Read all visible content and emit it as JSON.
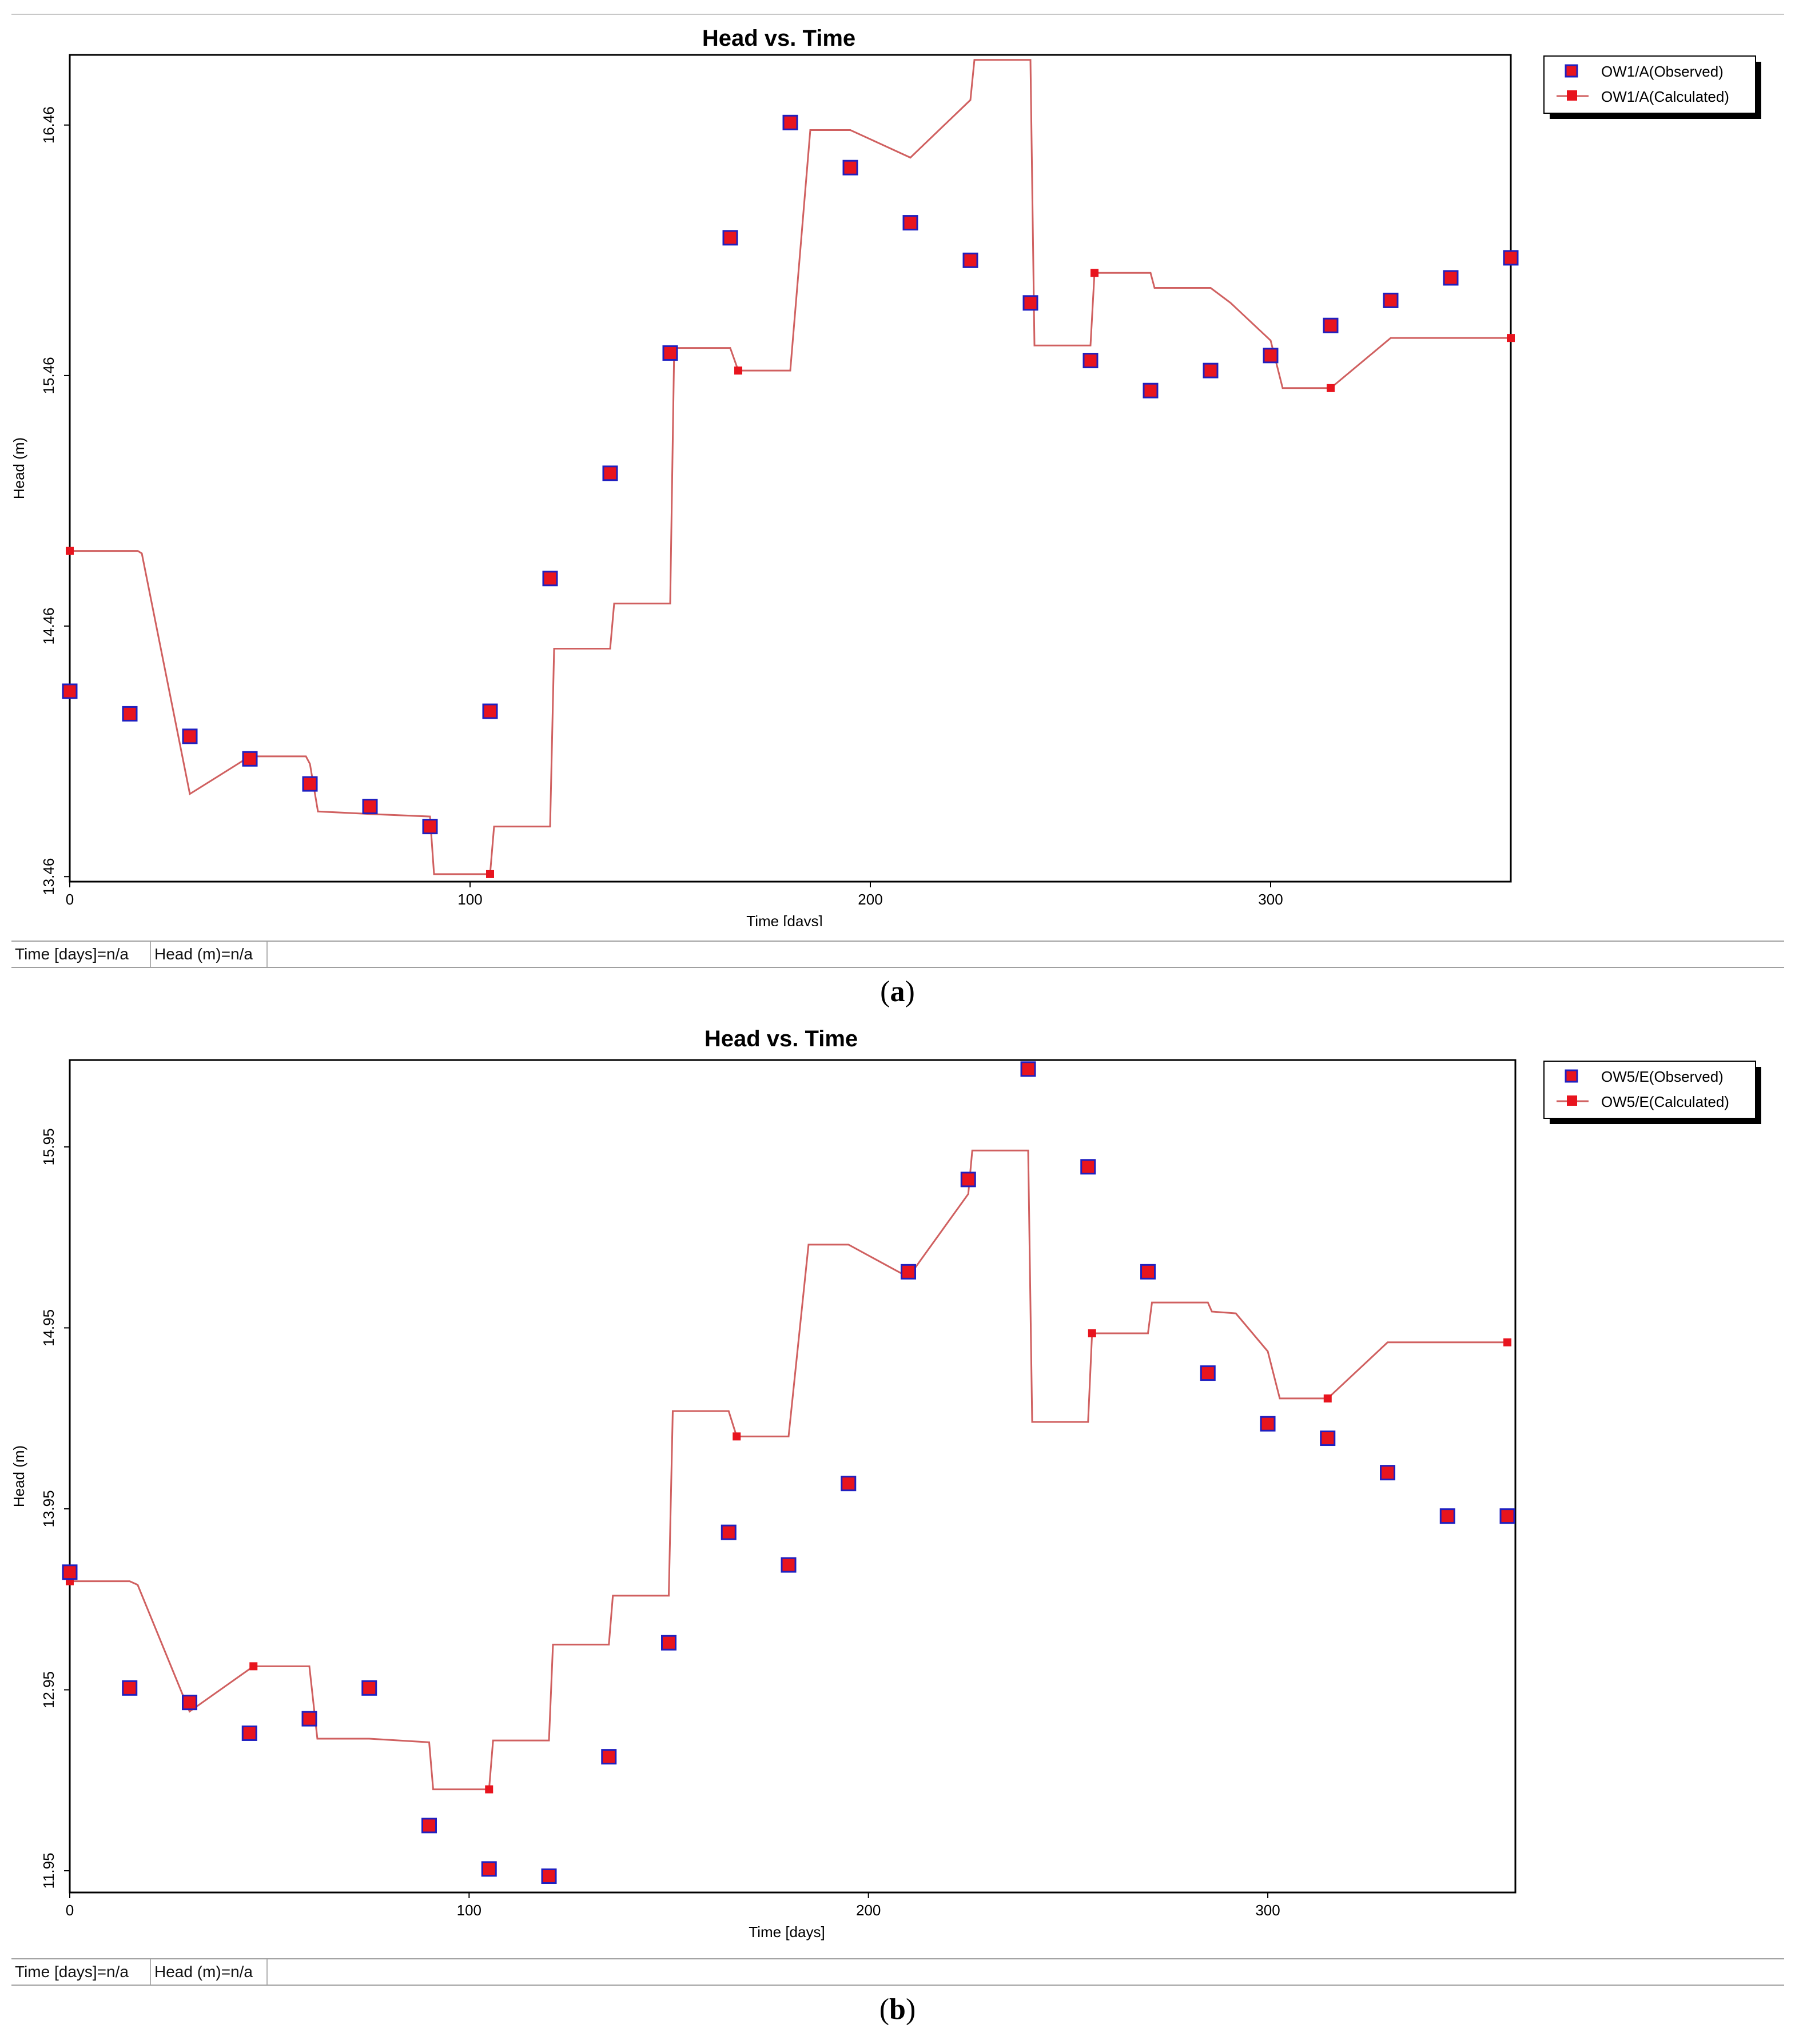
{
  "panels": [
    {
      "caption": "a",
      "status": {
        "time": "Time  [days]=n/a",
        "head": "Head (m)=n/a",
        "extra": ""
      },
      "chart_data": {
        "type": "line",
        "title": "Head vs. Time",
        "xlabel": "Time  [days]",
        "ylabel": "Head (m)",
        "xlim": [
          0,
          360
        ],
        "ylim": [
          13.44,
          16.74
        ],
        "xticks": [
          0,
          100,
          200,
          300
        ],
        "yticks": [
          13.46,
          14.46,
          15.46,
          16.46
        ],
        "ytick_labels": [
          "13.46",
          "14.46",
          "15.46",
          "16.46"
        ],
        "legend_position": "top-right",
        "series": [
          {
            "name": "OW1/A(Observed)",
            "kind": "markers",
            "marker_fill": "#e8141e",
            "marker_edge": "#2020c0",
            "x": [
              0,
              15,
              30,
              45,
              60,
              75,
              90,
              105,
              120,
              135,
              150,
              165,
              180,
              195,
              210,
              225,
              240,
              255,
              270,
              285,
              300,
              315,
              330,
              345,
              360
            ],
            "y": [
              14.2,
              14.11,
              14.02,
              13.93,
              13.83,
              13.74,
              13.66,
              14.12,
              14.65,
              15.07,
              15.55,
              16.01,
              16.47,
              16.29,
              16.07,
              15.92,
              15.75,
              15.52,
              15.4,
              15.48,
              15.54,
              15.66,
              15.76,
              15.85,
              15.93
            ]
          },
          {
            "name": "OW1/A(Calculated)",
            "kind": "line",
            "line_color": "#d06060",
            "marker_fill": "#e8141e",
            "x": [
              0,
              17,
              18,
              30,
              45,
              59,
              60,
              62,
              75,
              90,
              91,
              105,
              106,
              120,
              121,
              135,
              136,
              150,
              151,
              165,
              167,
              180,
              185,
              195,
              210,
              225,
              226,
              240,
              241,
              255,
              256,
              270,
              271,
              285,
              290,
              300,
              303,
              315,
              330,
              345,
              360
            ],
            "y": [
              14.76,
              14.76,
              14.75,
              13.79,
              13.94,
              13.94,
              13.91,
              13.72,
              13.71,
              13.7,
              13.47,
              13.47,
              13.66,
              13.66,
              14.37,
              14.37,
              14.55,
              14.55,
              15.57,
              15.57,
              15.48,
              15.48,
              16.44,
              16.44,
              16.33,
              16.56,
              16.72,
              16.72,
              15.58,
              15.58,
              15.87,
              15.87,
              15.81,
              15.81,
              15.75,
              15.6,
              15.41,
              15.41,
              15.61,
              15.61,
              15.61
            ]
          }
        ]
      }
    },
    {
      "caption": "b",
      "status": {
        "time": "Time  [days]=n/a",
        "head": "Head (m)=n/a",
        "extra": ""
      },
      "chart_data": {
        "type": "line",
        "title": "Head vs. Time",
        "xlabel": "Time  [days]",
        "ylabel": "Head (m)",
        "xlim": [
          0,
          362
        ],
        "ylim": [
          11.83,
          16.43
        ],
        "xticks": [
          0,
          100,
          200,
          300
        ],
        "yticks": [
          11.95,
          12.95,
          13.95,
          14.95,
          15.95
        ],
        "ytick_labels": [
          "11.95",
          "12.95",
          "13.95",
          "14.95",
          "15.95"
        ],
        "legend_position": "top-right",
        "series": [
          {
            "name": "OW5/E(Observed)",
            "kind": "markers",
            "marker_fill": "#e8141e",
            "marker_edge": "#2020c0",
            "x": [
              0,
              15,
              30,
              45,
              60,
              75,
              90,
              105,
              120,
              135,
              150,
              165,
              180,
              195,
              210,
              225,
              240,
              255,
              270,
              285,
              300,
              315,
              330,
              345,
              360
            ],
            "y": [
              13.6,
              12.96,
              12.88,
              12.71,
              12.79,
              12.96,
              12.2,
              11.96,
              11.92,
              12.58,
              13.21,
              13.82,
              13.64,
              14.09,
              15.26,
              15.77,
              16.38,
              15.84,
              15.26,
              14.7,
              14.42,
              14.34,
              14.15,
              13.91,
              13.91
            ]
          },
          {
            "name": "OW5/E(Calculated)",
            "kind": "line",
            "line_color": "#d06060",
            "marker_fill": "#e8141e",
            "x": [
              0,
              15,
              17,
              30,
              46,
              60,
              62,
              75,
              90,
              91,
              105,
              106,
              120,
              121,
              135,
              136,
              150,
              151,
              165,
              167,
              180,
              185,
              195,
              210,
              225,
              226,
              240,
              241,
              255,
              256,
              270,
              271,
              285,
              286,
              292,
              300,
              303,
              315,
              330,
              345,
              360
            ],
            "y": [
              13.55,
              13.55,
              13.53,
              12.83,
              13.08,
              13.08,
              12.68,
              12.68,
              12.66,
              12.4,
              12.4,
              12.67,
              12.67,
              13.2,
              13.2,
              13.47,
              13.47,
              14.49,
              14.49,
              14.35,
              14.35,
              15.41,
              15.41,
              15.23,
              15.69,
              15.93,
              15.93,
              14.43,
              14.43,
              14.92,
              14.92,
              15.09,
              15.09,
              15.04,
              15.03,
              14.82,
              14.56,
              14.56,
              14.87,
              14.87,
              14.87
            ]
          }
        ]
      }
    }
  ]
}
